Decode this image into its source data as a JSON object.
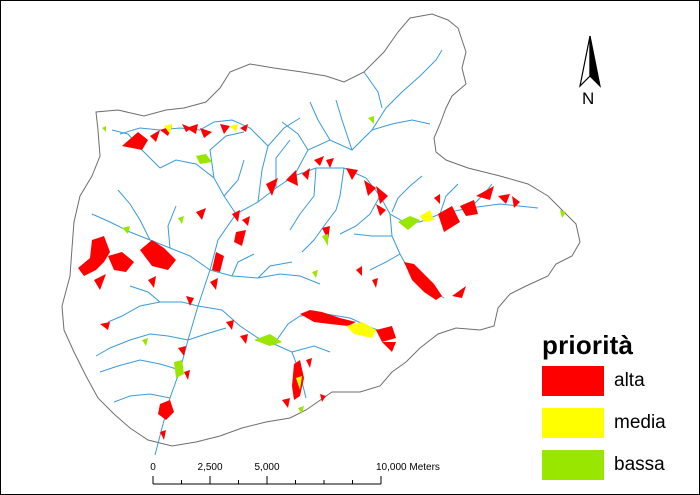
{
  "legend": {
    "title": "priorità",
    "items": [
      {
        "label": "alta",
        "color": "#ff0000"
      },
      {
        "label": "media",
        "color": "#ffff00"
      },
      {
        "label": "bassa",
        "color": "#99e600"
      }
    ]
  },
  "north_arrow": {
    "label": "N"
  },
  "scale_bar": {
    "ticks": [
      "0",
      "2,500",
      "5,000",
      "10,000 Meters"
    ],
    "values_m": [
      0,
      2500,
      5000,
      10000
    ]
  },
  "colors": {
    "river": "#3a9bd8",
    "boundary": "#6e6e6e",
    "alta": "#ff0000",
    "media": "#ffff00",
    "bassa": "#99e600"
  }
}
